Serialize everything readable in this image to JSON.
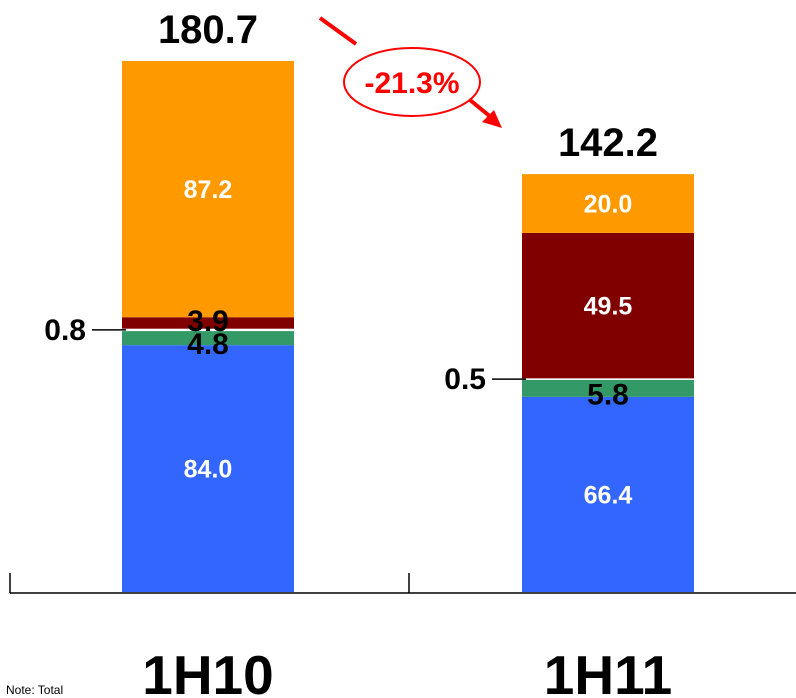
{
  "chart_data": {
    "type": "bar",
    "stacked": true,
    "categories": [
      "1H10",
      "1H11"
    ],
    "series": [
      {
        "values": [
          84.0,
          66.4
        ],
        "color": "#3366FF",
        "labels": [
          "84.0",
          "66.4"
        ]
      },
      {
        "values": [
          4.8,
          5.8
        ],
        "color": "#339966",
        "labels": [
          "4.8",
          "5.8"
        ]
      },
      {
        "values": [
          0.8,
          0.5
        ],
        "color": "#FFFFFF",
        "labels": [
          "0.8",
          "0.5"
        ]
      },
      {
        "values": [
          3.9,
          49.5
        ],
        "color": "#800000",
        "labels": [
          "3.9",
          "49.5"
        ]
      },
      {
        "values": [
          87.2,
          20.0
        ],
        "color": "#FF9900",
        "labels": [
          "87.2",
          "20.0"
        ]
      }
    ],
    "totals": [
      "180.7",
      "142.2"
    ],
    "change_annotation": "-21.3%",
    "annotation_color": "#FF0000"
  },
  "footnote": "Note: Total"
}
